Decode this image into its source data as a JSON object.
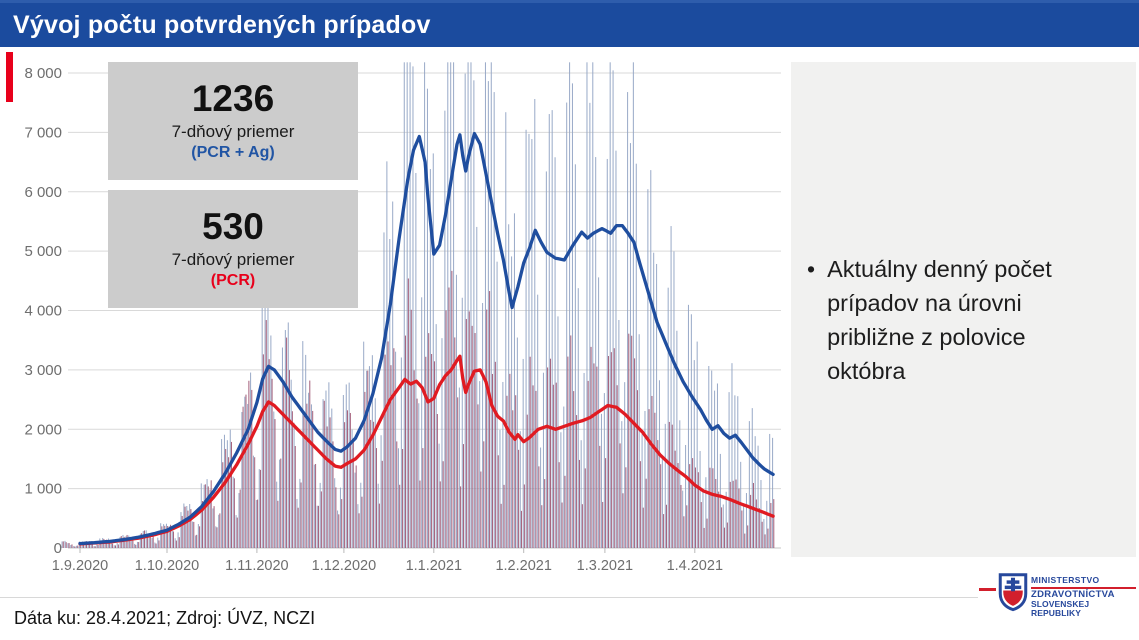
{
  "slide": {
    "title": "Vývoj počtu potvrdených prípadov",
    "footer": "Dáta ku: 28.4.2021; Zdroj: ÚVZ, NCZI",
    "header_color": "#1b4b9e",
    "accent_color": "#e8001b"
  },
  "stat_boxes": [
    {
      "value": "1236",
      "label": "7-dňový priemer",
      "sublabel": "(PCR + Ag)",
      "sublabel_color": "#2155a4"
    },
    {
      "value": "530",
      "label": "7-dňový priemer",
      "sublabel": "(PCR)",
      "sublabel_color": "#e8001b"
    }
  ],
  "note_panel": {
    "bullet": "•",
    "bullet_text": "Aktuálny denný počet prípadov na úrovni približne z polovice októbra"
  },
  "logo": {
    "line1": "MINISTERSTVO",
    "line2": "ZDRAVOTNÍCTVA",
    "line3": "SLOVENSKEJ REPUBLIKY",
    "text_color": "#27489c",
    "accent_color": "#d21f2c"
  },
  "chart_data": {
    "type": "composite",
    "description": "Daily confirmed COVID-19 cases in Slovakia (thin bars, PCR+Ag and PCR) with 7-day average lines",
    "start_date": "1.9.2020",
    "end_date": "28.4.2021",
    "days_total": 240,
    "ylim": [
      0,
      8000
    ],
    "grid": true,
    "ytick_labels": [
      "0",
      "1 000",
      "2 000",
      "3 000",
      "4 000",
      "5 000",
      "6 000",
      "7 000",
      "8 000"
    ],
    "xtick_labels": [
      "1.9.2020",
      "1.10.2020",
      "1.11.2020",
      "1.12.2020",
      "1.1.2021",
      "1.2.2021",
      "1.3.2021",
      "1.4.2021"
    ],
    "month_start_days": [
      0,
      30,
      61,
      91,
      122,
      153,
      181,
      212
    ],
    "series": [
      {
        "name": "7-dňový priemer (PCR + Ag)",
        "type": "line",
        "color": "#1f4e9f",
        "final_value": 1236,
        "points": [
          [
            0,
            75
          ],
          [
            5,
            90
          ],
          [
            10,
            110
          ],
          [
            15,
            140
          ],
          [
            20,
            180
          ],
          [
            25,
            235
          ],
          [
            30,
            300
          ],
          [
            34,
            400
          ],
          [
            38,
            520
          ],
          [
            42,
            700
          ],
          [
            46,
            950
          ],
          [
            50,
            1250
          ],
          [
            54,
            1600
          ],
          [
            58,
            2000
          ],
          [
            61,
            2450
          ],
          [
            63,
            2850
          ],
          [
            65,
            3060
          ],
          [
            67,
            3000
          ],
          [
            70,
            2800
          ],
          [
            73,
            2550
          ],
          [
            76,
            2350
          ],
          [
            79,
            2150
          ],
          [
            82,
            1950
          ],
          [
            85,
            1800
          ],
          [
            88,
            1660
          ],
          [
            90,
            1630
          ],
          [
            92,
            1700
          ],
          [
            95,
            1850
          ],
          [
            98,
            2150
          ],
          [
            101,
            2600
          ],
          [
            104,
            3200
          ],
          [
            107,
            4100
          ],
          [
            110,
            5200
          ],
          [
            113,
            6200
          ],
          [
            115,
            6700
          ],
          [
            117,
            6930
          ],
          [
            119,
            6500
          ],
          [
            120,
            5900
          ],
          [
            122,
            4950
          ],
          [
            124,
            5100
          ],
          [
            126,
            5600
          ],
          [
            128,
            6200
          ],
          [
            130,
            6800
          ],
          [
            131,
            6960
          ],
          [
            132,
            6600
          ],
          [
            133,
            6350
          ],
          [
            134,
            6600
          ],
          [
            136,
            6980
          ],
          [
            138,
            6800
          ],
          [
            140,
            6300
          ],
          [
            142,
            5800
          ],
          [
            144,
            5300
          ],
          [
            146,
            4850
          ],
          [
            148,
            4300
          ],
          [
            149,
            4050
          ],
          [
            151,
            4400
          ],
          [
            153,
            4800
          ],
          [
            155,
            5050
          ],
          [
            157,
            5350
          ],
          [
            159,
            5150
          ],
          [
            161,
            4980
          ],
          [
            164,
            4880
          ],
          [
            167,
            4850
          ],
          [
            170,
            5100
          ],
          [
            173,
            5320
          ],
          [
            175,
            5220
          ],
          [
            177,
            5300
          ],
          [
            180,
            5380
          ],
          [
            183,
            5300
          ],
          [
            185,
            5430
          ],
          [
            187,
            5430
          ],
          [
            189,
            5300
          ],
          [
            191,
            5150
          ],
          [
            193,
            4800
          ],
          [
            196,
            4300
          ],
          [
            199,
            3800
          ],
          [
            202,
            3450
          ],
          [
            205,
            3100
          ],
          [
            208,
            2800
          ],
          [
            211,
            2550
          ],
          [
            214,
            2330
          ],
          [
            216,
            2150
          ],
          [
            218,
            2000
          ],
          [
            220,
            2060
          ],
          [
            222,
            1930
          ],
          [
            224,
            1850
          ],
          [
            226,
            1900
          ],
          [
            228,
            1780
          ],
          [
            230,
            1650
          ],
          [
            232,
            1520
          ],
          [
            234,
            1420
          ],
          [
            236,
            1330
          ],
          [
            239,
            1240
          ]
        ]
      },
      {
        "name": "7-dňový priemer (PCR)",
        "type": "line",
        "color": "#e01b22",
        "final_value": 530,
        "points": [
          [
            0,
            70
          ],
          [
            5,
            85
          ],
          [
            10,
            100
          ],
          [
            15,
            130
          ],
          [
            20,
            165
          ],
          [
            25,
            215
          ],
          [
            30,
            280
          ],
          [
            34,
            370
          ],
          [
            38,
            480
          ],
          [
            42,
            640
          ],
          [
            46,
            850
          ],
          [
            50,
            1100
          ],
          [
            54,
            1400
          ],
          [
            58,
            1750
          ],
          [
            61,
            2050
          ],
          [
            63,
            2300
          ],
          [
            65,
            2460
          ],
          [
            67,
            2400
          ],
          [
            70,
            2250
          ],
          [
            73,
            2100
          ],
          [
            76,
            1950
          ],
          [
            79,
            1800
          ],
          [
            82,
            1650
          ],
          [
            85,
            1500
          ],
          [
            88,
            1380
          ],
          [
            90,
            1360
          ],
          [
            92,
            1420
          ],
          [
            95,
            1500
          ],
          [
            98,
            1650
          ],
          [
            101,
            1900
          ],
          [
            104,
            2200
          ],
          [
            107,
            2500
          ],
          [
            110,
            2700
          ],
          [
            112,
            2840
          ],
          [
            114,
            2760
          ],
          [
            116,
            2810
          ],
          [
            118,
            2700
          ],
          [
            120,
            2460
          ],
          [
            122,
            2520
          ],
          [
            124,
            2750
          ],
          [
            126,
            2900
          ],
          [
            128,
            3000
          ],
          [
            130,
            3160
          ],
          [
            131,
            3230
          ],
          [
            132,
            2850
          ],
          [
            133,
            2620
          ],
          [
            134,
            2760
          ],
          [
            136,
            2980
          ],
          [
            138,
            3000
          ],
          [
            140,
            2800
          ],
          [
            142,
            2400
          ],
          [
            144,
            2220
          ],
          [
            146,
            2140
          ],
          [
            148,
            1950
          ],
          [
            150,
            1830
          ],
          [
            151,
            1910
          ],
          [
            153,
            1790
          ],
          [
            155,
            1860
          ],
          [
            158,
            2000
          ],
          [
            161,
            2050
          ],
          [
            164,
            2000
          ],
          [
            167,
            2050
          ],
          [
            170,
            2100
          ],
          [
            173,
            2140
          ],
          [
            176,
            2200
          ],
          [
            179,
            2300
          ],
          [
            182,
            2400
          ],
          [
            185,
            2370
          ],
          [
            188,
            2250
          ],
          [
            191,
            2100
          ],
          [
            194,
            1950
          ],
          [
            197,
            1750
          ],
          [
            200,
            1570
          ],
          [
            203,
            1430
          ],
          [
            206,
            1310
          ],
          [
            209,
            1200
          ],
          [
            212,
            1060
          ],
          [
            215,
            960
          ],
          [
            218,
            905
          ],
          [
            221,
            870
          ],
          [
            224,
            820
          ],
          [
            227,
            760
          ],
          [
            230,
            705
          ],
          [
            233,
            650
          ],
          [
            236,
            595
          ],
          [
            239,
            535
          ]
        ]
      },
      {
        "name": "denné prípady (PCR + Ag)",
        "type": "bar",
        "color": "#92a4c4"
      },
      {
        "name": "denné prípady (PCR)",
        "type": "bar",
        "color": "#9d5571"
      }
    ],
    "bar_model": {
      "weekday_multipliers": [
        1.42,
        1.5,
        1.4,
        1.25,
        0.8,
        0.38,
        0.58
      ],
      "jitter_base": 0.84,
      "jitter_amp": 0.32,
      "clip_value": 8180,
      "start_day": -6
    }
  }
}
